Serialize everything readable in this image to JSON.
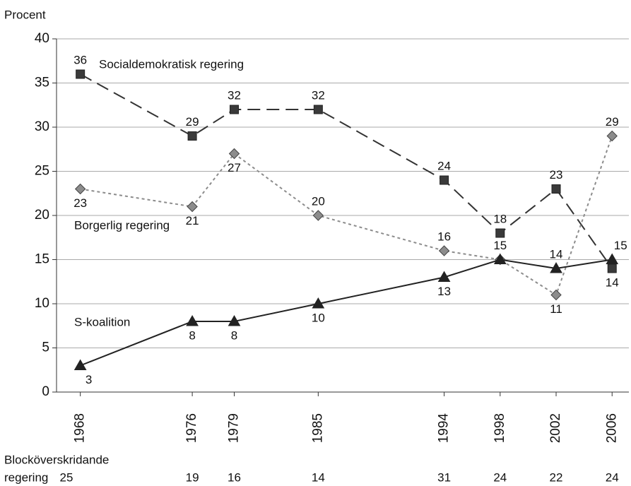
{
  "chart_data": {
    "type": "line",
    "y_axis_label": "Procent",
    "x": [
      1968,
      1976,
      1979,
      1985,
      1994,
      1998,
      2002,
      2006
    ],
    "xlim": [
      1966.3,
      2007.2
    ],
    "ylim": [
      0,
      40
    ],
    "yticks": [
      0,
      5,
      10,
      15,
      20,
      25,
      30,
      35,
      40
    ],
    "grid": true,
    "series": [
      {
        "name": "Socialdemokratisk regering",
        "color": "#333333",
        "marker": "square",
        "line": "dashed",
        "values": [
          36,
          29,
          32,
          32,
          24,
          18,
          23,
          14
        ]
      },
      {
        "name": "Borgerlig regering",
        "color": "#8c8c8c",
        "marker": "diamond",
        "line": "dotted",
        "values": [
          23,
          21,
          27,
          20,
          16,
          15,
          11,
          29
        ]
      },
      {
        "name": "S-koalition",
        "color": "#222222",
        "marker": "triangle",
        "line": "solid",
        "values": [
          3,
          8,
          8,
          10,
          13,
          15,
          14,
          15
        ]
      }
    ],
    "bottom_row": {
      "label": [
        "Blocköverskridande",
        "regering"
      ],
      "values": [
        25,
        19,
        16,
        14,
        31,
        24,
        22,
        24
      ]
    }
  }
}
